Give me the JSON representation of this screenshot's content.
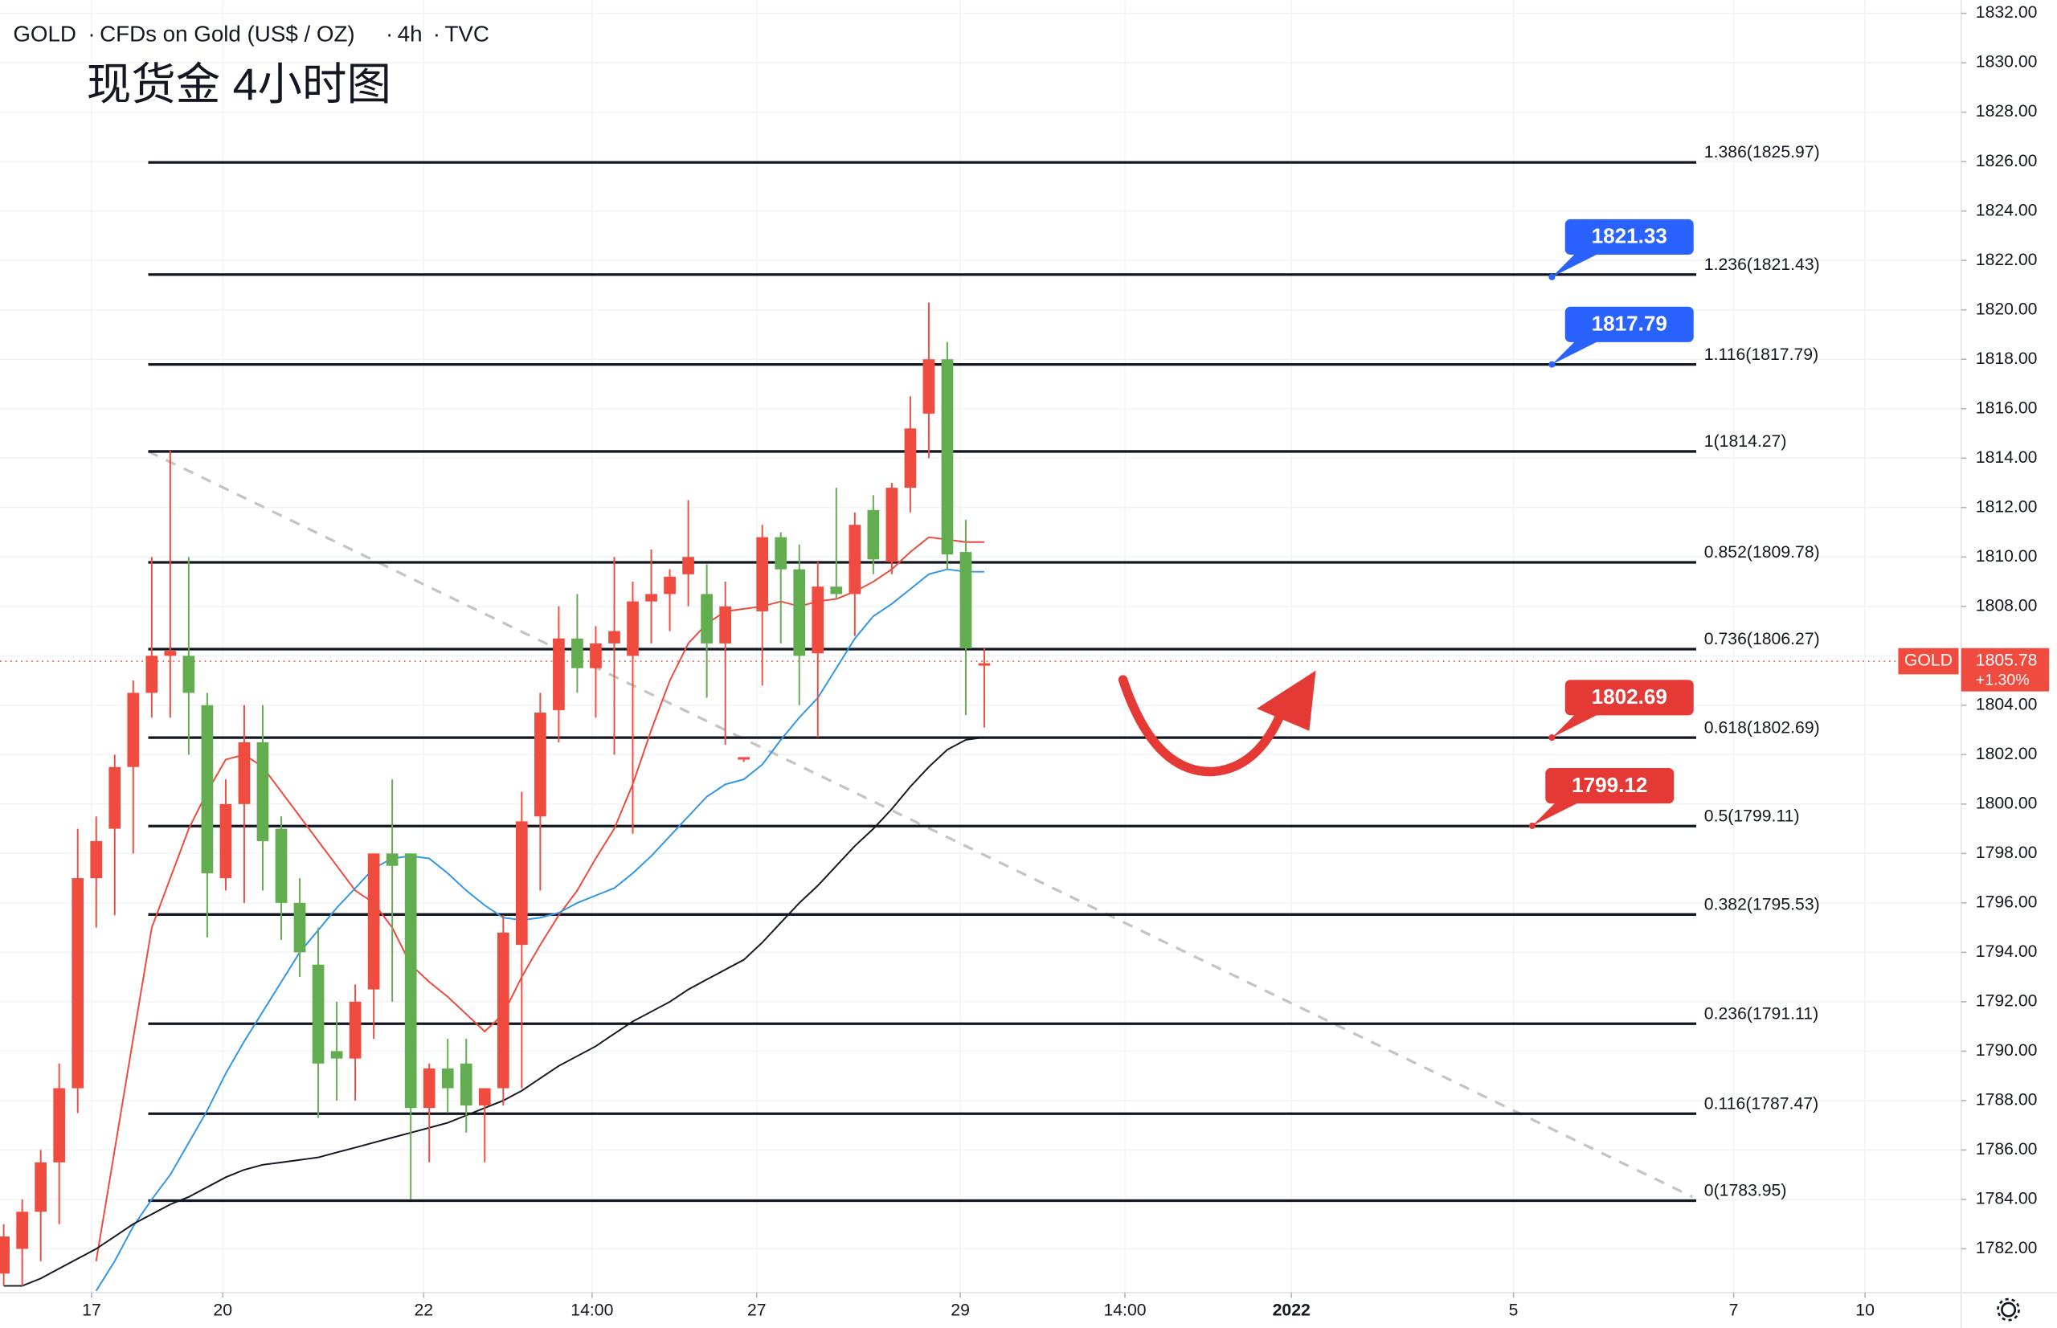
{
  "chart_data": {
    "type": "candlestick",
    "header": [
      "GOLD",
      "CFDs on Gold (US$ / OZ)",
      "4h",
      "TVC"
    ],
    "annotation": "现货金 4小时图",
    "up_color": "#ef4b3f",
    "down_color": "#62ad4f",
    "grid": true,
    "open": [
      1781,
      1782,
      1783.5,
      1785.5,
      1788.5,
      1797,
      1799,
      1801.5,
      1804.5,
      1806,
      1806,
      1804,
      1797,
      1800,
      1802.5,
      1799,
      1796,
      1793.5,
      1790,
      1789.7,
      1792.5,
      1798,
      1798,
      1787.7,
      1789.3,
      1789.5,
      1787.8,
      1788.5,
      1794.3,
      1799.5,
      1803.8,
      1806.7,
      1805.5,
      1806.5,
      1806,
      1808.2,
      1808.5,
      1809.3,
      1808.5,
      1806.5,
      1801.8,
      1807.8,
      1810.8,
      1809.5,
      1806.1,
      1808.8,
      1808.5,
      1811.9,
      1809.8,
      1812.8,
      1815.8,
      1818,
      1810.2,
      1805.6
    ],
    "high": [
      1783,
      1784,
      1786,
      1789.5,
      1799,
      1799.5,
      1802,
      1805,
      1810,
      1814.3,
      1810,
      1804.5,
      1801,
      1804,
      1804,
      1799.5,
      1797,
      1795,
      1792,
      1792.7,
      1798,
      1801,
      1798,
      1789.5,
      1790.5,
      1790.5,
      1788.5,
      1795.5,
      1800.5,
      1804.5,
      1808,
      1808.5,
      1807.2,
      1810,
      1809,
      1810.3,
      1809.5,
      1812.3,
      1809.7,
      1809,
      1801.9,
      1811.3,
      1811,
      1810.5,
      1809.8,
      1812.8,
      1811.8,
      1812.5,
      1813,
      1816.5,
      1820.3,
      1818.7,
      1811.5,
      1806.3
    ],
    "low": [
      1780.5,
      1780.5,
      1781.5,
      1783,
      1787.5,
      1795,
      1795.5,
      1798,
      1803.5,
      1803.5,
      1802,
      1794.6,
      1796.5,
      1796,
      1796.5,
      1794.5,
      1793,
      1787.3,
      1788,
      1788,
      1790.5,
      1792,
      1784,
      1785.5,
      1787.5,
      1786.7,
      1785.5,
      1787.8,
      1788.5,
      1796.5,
      1802.5,
      1804.5,
      1803.5,
      1802,
      1798.8,
      1806.5,
      1807,
      1808,
      1804.3,
      1802.4,
      1801.7,
      1804.8,
      1806.5,
      1804,
      1802.7,
      1808.3,
      1806.8,
      1809.3,
      1809.3,
      1811.8,
      1814,
      1809.5,
      1803.6,
      1803.1
    ],
    "close": [
      1782.5,
      1783.5,
      1785.5,
      1788.5,
      1797,
      1798.5,
      1801.5,
      1804.5,
      1806,
      1806.2,
      1804.5,
      1797.2,
      1800,
      1802.5,
      1798.5,
      1796,
      1794,
      1789.5,
      1789.7,
      1792,
      1798,
      1797.5,
      1787.7,
      1789.3,
      1788.5,
      1787.8,
      1788.5,
      1794.8,
      1799.3,
      1803.7,
      1806.7,
      1805.5,
      1806.5,
      1807,
      1808.2,
      1808.5,
      1809.2,
      1810,
      1806.5,
      1808,
      1801.9,
      1810.8,
      1809.5,
      1806,
      1808.8,
      1808.5,
      1811.3,
      1809.9,
      1812.8,
      1815.2,
      1818,
      1810.1,
      1806.3,
      1805.7
    ],
    "ma": [
      {
        "color": "#f0473b",
        "values": [
          null,
          null,
          null,
          null,
          null,
          1781.5,
          1786,
          1790.5,
          1795,
          1797,
          1799,
          1800.5,
          1801.8,
          1802,
          1801.5,
          1800.5,
          1799.5,
          1798.5,
          1797.5,
          1796.5,
          1796,
          1795,
          1793.5,
          1792.8,
          1792.2,
          1791.5,
          1790.8,
          1791.5,
          1793,
          1794.3,
          1795.5,
          1796.5,
          1797.8,
          1799,
          1800.8,
          1803,
          1805,
          1806.5,
          1807.3,
          1807.8,
          1807.9,
          1808,
          1808.2,
          1808,
          1808.2,
          1808.3,
          1808.6,
          1809,
          1809.5,
          1810.2,
          1810.8,
          1810.7,
          1810.6,
          1810.6
        ]
      },
      {
        "color": "#2e95ea",
        "values": [
          null,
          null,
          null,
          null,
          null,
          1780.3,
          1781.5,
          1782.9,
          1784,
          1785,
          1786.3,
          1787.6,
          1789.1,
          1790.4,
          1791.6,
          1792.8,
          1794,
          1794.9,
          1795.8,
          1796.6,
          1797.4,
          1797.8,
          1797.9,
          1797.8,
          1797.2,
          1796.5,
          1795.9,
          1795.4,
          1795.3,
          1795.4,
          1795.6,
          1796,
          1796.3,
          1796.6,
          1797.2,
          1797.9,
          1798.7,
          1799.5,
          1800.3,
          1800.8,
          1801,
          1801.6,
          1802.6,
          1803.5,
          1804.3,
          1805.5,
          1806.7,
          1807.6,
          1808.1,
          1808.7,
          1809.3,
          1809.5,
          1809.4,
          1809.4
        ]
      },
      {
        "color": "#131722",
        "values": [
          1780.5,
          1780.5,
          1780.8,
          1781.2,
          1781.6,
          1782,
          1782.5,
          1783,
          1783.4,
          1783.8,
          1784.1,
          1784.5,
          1784.9,
          1785.2,
          1785.4,
          1785.5,
          1785.6,
          1785.7,
          1785.9,
          1786.1,
          1786.3,
          1786.5,
          1786.7,
          1786.9,
          1787.1,
          1787.4,
          1787.7,
          1788,
          1788.4,
          1788.9,
          1789.4,
          1789.8,
          1790.2,
          1790.7,
          1791.2,
          1791.6,
          1792,
          1792.5,
          1792.9,
          1793.3,
          1793.7,
          1794.4,
          1795.2,
          1796,
          1796.7,
          1797.5,
          1798.3,
          1799,
          1799.8,
          1800.7,
          1801.5,
          1802.2,
          1802.6,
          1802.7
        ]
      }
    ],
    "levels": [
      {
        "value": 1825.97,
        "label": "1.386(1825.97)"
      },
      {
        "value": 1821.43,
        "label": "1.236(1821.43)"
      },
      {
        "value": 1817.79,
        "label": "1.116(1817.79)"
      },
      {
        "value": 1814.27,
        "label": "1(1814.27)"
      },
      {
        "value": 1809.78,
        "label": "0.852(1809.78)"
      },
      {
        "value": 1806.27,
        "label": "0.736(1806.27)"
      },
      {
        "value": 1802.69,
        "label": "0.618(1802.69)"
      },
      {
        "value": 1799.11,
        "label": "0.5(1799.11)"
      },
      {
        "value": 1795.53,
        "label": "0.382(1795.53)"
      },
      {
        "value": 1791.11,
        "label": "0.236(1791.11)"
      },
      {
        "value": 1787.47,
        "label": "0.116(1787.47)"
      },
      {
        "value": 1783.95,
        "label": "0(1783.95)"
      }
    ],
    "callouts": [
      {
        "value": 1821.33,
        "color": "#2962ff"
      },
      {
        "value": 1817.79,
        "color": "#2962ff"
      },
      {
        "value": 1802.69,
        "color": "#e53935"
      },
      {
        "value": 1799.12,
        "color": "#e53935"
      }
    ],
    "last_price": 1805.78,
    "change_label": "+1.30%",
    "xlim": [
      -0.2,
      105.8
    ],
    "xticks": [
      {
        "value": 4.75,
        "label": "17"
      },
      {
        "value": 11.84,
        "label": "20"
      },
      {
        "value": 22.7,
        "label": "22"
      },
      {
        "value": 31.8,
        "label": "14:00"
      },
      {
        "value": 40.7,
        "label": "27"
      },
      {
        "value": 51.7,
        "label": "29"
      },
      {
        "value": 60.6,
        "label": "14:00"
      },
      {
        "value": 69.6,
        "label": "2022"
      },
      {
        "value": 81.6,
        "label": "5"
      },
      {
        "value": 93.5,
        "label": "7"
      },
      {
        "value": 100.6,
        "label": "10"
      }
    ],
    "ylim": [
      1780.23,
      1832.54
    ],
    "yticks": [
      {
        "value": 1782,
        "label": "1782.00"
      },
      {
        "value": 1784,
        "label": "1784.00"
      },
      {
        "value": 1786,
        "label": "1786.00"
      },
      {
        "value": 1788,
        "label": "1788.00"
      },
      {
        "value": 1790,
        "label": "1790.00"
      },
      {
        "value": 1792,
        "label": "1792.00"
      },
      {
        "value": 1794,
        "label": "1794.00"
      },
      {
        "value": 1796,
        "label": "1796.00"
      },
      {
        "value": 1798,
        "label": "1798.00"
      },
      {
        "value": 1800,
        "label": "1800.00"
      },
      {
        "value": 1802,
        "label": "1802.00"
      },
      {
        "value": 1804,
        "label": "1804.00"
      },
      {
        "value": 1806,
        "label": "1806.00"
      },
      {
        "value": 1808,
        "label": "1808.00"
      },
      {
        "value": 1810,
        "label": "1810.00"
      },
      {
        "value": 1812,
        "label": "1812.00"
      },
      {
        "value": 1814,
        "label": "1814.00"
      },
      {
        "value": 1816,
        "label": "1816.00"
      },
      {
        "value": 1818,
        "label": "1818.00"
      },
      {
        "value": 1820,
        "label": "1820.00"
      },
      {
        "value": 1822,
        "label": "1822.00"
      },
      {
        "value": 1824,
        "label": "1824.00"
      },
      {
        "value": 1826,
        "label": "1826.00"
      },
      {
        "value": 1828,
        "label": "1828.00"
      },
      {
        "value": 1830,
        "label": "1830.00"
      },
      {
        "value": 1832,
        "label": "1832.00"
      }
    ]
  }
}
